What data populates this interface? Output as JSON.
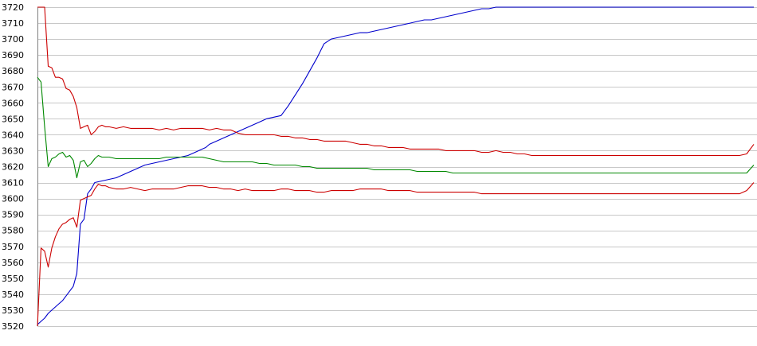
{
  "chart_data": {
    "type": "line",
    "ylim": [
      3520,
      3720
    ],
    "yticks": [
      3520,
      3530,
      3540,
      3550,
      3560,
      3570,
      3580,
      3590,
      3600,
      3610,
      3620,
      3630,
      3640,
      3650,
      3660,
      3670,
      3680,
      3690,
      3700,
      3710,
      3720
    ],
    "grid": true,
    "legend": "none",
    "series": [
      {
        "color": "#0000cc",
        "x": [
          0,
          1,
          2,
          3,
          4,
          5,
          6,
          7,
          8,
          9,
          10,
          11,
          12,
          13,
          14,
          15,
          16,
          18,
          20,
          22,
          24,
          26,
          28,
          30,
          32,
          34,
          36,
          38,
          40,
          42,
          44,
          46,
          47,
          48,
          50,
          52,
          54,
          56,
          58,
          60,
          62,
          64,
          66,
          68,
          70,
          72,
          74,
          76,
          78,
          80,
          82,
          84,
          86,
          88,
          90,
          92,
          94,
          96,
          98,
          100,
          102,
          104,
          106,
          108,
          110,
          112,
          114,
          116,
          118,
          120,
          122,
          124,
          126,
          128,
          130,
          132,
          134,
          136,
          138,
          140,
          142,
          144,
          146,
          148,
          150,
          152,
          154,
          156,
          158,
          160,
          162,
          164,
          166,
          168,
          170,
          172,
          174,
          176,
          178,
          180,
          182,
          184,
          186,
          188,
          190,
          192,
          194,
          196,
          198,
          200
        ],
        "y": [
          3521,
          3523,
          3525,
          3528,
          3530,
          3532,
          3534,
          3536,
          3539,
          3542,
          3545,
          3553,
          3584,
          3587,
          3603,
          3606,
          3610,
          3611,
          3612,
          3613,
          3615,
          3617,
          3619,
          3621,
          3622,
          3623,
          3624,
          3625,
          3626,
          3627,
          3629,
          3631,
          3632,
          3634,
          3636,
          3638,
          3640,
          3642,
          3644,
          3646,
          3648,
          3650,
          3651,
          3652,
          3658,
          3665,
          3672,
          3680,
          3688,
          3697,
          3700,
          3701,
          3702,
          3703,
          3704,
          3704,
          3705,
          3706,
          3707,
          3708,
          3709,
          3710,
          3711,
          3712,
          3712,
          3713,
          3714,
          3715,
          3716,
          3717,
          3718,
          3719,
          3719,
          3720,
          3720,
          3720,
          3720,
          3720,
          3720,
          3720,
          3720,
          3720,
          3720,
          3720,
          3720,
          3720,
          3720,
          3720,
          3720,
          3720,
          3720,
          3720,
          3720,
          3720,
          3720,
          3720,
          3720,
          3720,
          3720,
          3720,
          3720,
          3720,
          3720,
          3720,
          3720,
          3720,
          3720,
          3720,
          3720,
          3720
        ]
      },
      {
        "color": "#cc0000",
        "x": [
          0,
          1,
          2,
          3,
          4,
          5,
          6,
          7,
          8,
          9,
          10,
          11,
          12,
          13,
          14,
          15,
          16,
          17,
          18,
          19,
          20,
          22,
          24,
          26,
          28,
          30,
          32,
          34,
          36,
          38,
          40,
          42,
          44,
          46,
          48,
          50,
          52,
          54,
          56,
          58,
          60,
          62,
          64,
          66,
          68,
          70,
          72,
          74,
          76,
          78,
          80,
          82,
          84,
          86,
          88,
          90,
          92,
          94,
          96,
          98,
          100,
          102,
          104,
          106,
          108,
          110,
          112,
          114,
          116,
          118,
          120,
          122,
          124,
          126,
          128,
          130,
          132,
          134,
          136,
          138,
          140,
          142,
          144,
          146,
          148,
          150,
          152,
          154,
          156,
          158,
          160,
          162,
          164,
          166,
          168,
          170,
          172,
          174,
          176,
          178,
          180,
          182,
          184,
          186,
          188,
          190,
          192,
          194,
          196,
          198,
          200
        ],
        "y": [
          3720,
          3720,
          3720,
          3683,
          3682,
          3676,
          3676,
          3675,
          3669,
          3668,
          3664,
          3657,
          3644,
          3645,
          3646,
          3640,
          3642,
          3645,
          3646,
          3645,
          3645,
          3644,
          3645,
          3644,
          3644,
          3644,
          3644,
          3643,
          3644,
          3643,
          3644,
          3644,
          3644,
          3644,
          3643,
          3644,
          3643,
          3643,
          3641,
          3640,
          3640,
          3640,
          3640,
          3640,
          3639,
          3639,
          3638,
          3638,
          3637,
          3637,
          3636,
          3636,
          3636,
          3636,
          3635,
          3634,
          3634,
          3633,
          3633,
          3632,
          3632,
          3632,
          3631,
          3631,
          3631,
          3631,
          3631,
          3630,
          3630,
          3630,
          3630,
          3630,
          3629,
          3629,
          3630,
          3629,
          3629,
          3628,
          3628,
          3627,
          3627,
          3627,
          3627,
          3627,
          3627,
          3627,
          3627,
          3627,
          3627,
          3627,
          3627,
          3627,
          3627,
          3627,
          3627,
          3627,
          3627,
          3627,
          3627,
          3627,
          3627,
          3627,
          3627,
          3627,
          3627,
          3627,
          3627,
          3627,
          3627,
          3628,
          3634
        ]
      },
      {
        "color": "#008800",
        "x": [
          0,
          1,
          2,
          3,
          4,
          5,
          6,
          7,
          8,
          9,
          10,
          11,
          12,
          13,
          14,
          15,
          16,
          17,
          18,
          19,
          20,
          22,
          24,
          26,
          28,
          30,
          32,
          34,
          36,
          38,
          40,
          42,
          44,
          46,
          48,
          50,
          52,
          54,
          56,
          58,
          60,
          62,
          64,
          66,
          68,
          70,
          72,
          74,
          76,
          78,
          80,
          82,
          84,
          86,
          88,
          90,
          92,
          94,
          96,
          98,
          100,
          102,
          104,
          106,
          108,
          110,
          112,
          114,
          116,
          118,
          120,
          122,
          124,
          126,
          128,
          130,
          132,
          134,
          136,
          138,
          140,
          142,
          144,
          146,
          148,
          150,
          152,
          154,
          156,
          158,
          160,
          162,
          164,
          166,
          168,
          170,
          172,
          174,
          176,
          178,
          180,
          182,
          184,
          186,
          188,
          190,
          192,
          194,
          196,
          198,
          200
        ],
        "y": [
          3676,
          3673,
          3645,
          3620,
          3625,
          3626,
          3628,
          3629,
          3626,
          3627,
          3624,
          3613,
          3623,
          3624,
          3620,
          3622,
          3625,
          3627,
          3626,
          3626,
          3626,
          3625,
          3625,
          3625,
          3625,
          3625,
          3625,
          3625,
          3626,
          3626,
          3626,
          3626,
          3626,
          3626,
          3625,
          3624,
          3623,
          3623,
          3623,
          3623,
          3623,
          3622,
          3622,
          3621,
          3621,
          3621,
          3621,
          3620,
          3620,
          3619,
          3619,
          3619,
          3619,
          3619,
          3619,
          3619,
          3619,
          3618,
          3618,
          3618,
          3618,
          3618,
          3618,
          3617,
          3617,
          3617,
          3617,
          3617,
          3616,
          3616,
          3616,
          3616,
          3616,
          3616,
          3616,
          3616,
          3616,
          3616,
          3616,
          3616,
          3616,
          3616,
          3616,
          3616,
          3616,
          3616,
          3616,
          3616,
          3616,
          3616,
          3616,
          3616,
          3616,
          3616,
          3616,
          3616,
          3616,
          3616,
          3616,
          3616,
          3616,
          3616,
          3616,
          3616,
          3616,
          3616,
          3616,
          3616,
          3616,
          3616,
          3621
        ]
      },
      {
        "color": "#cc0000",
        "x": [
          0,
          1,
          2,
          3,
          4,
          5,
          6,
          7,
          8,
          9,
          10,
          11,
          12,
          13,
          14,
          15,
          16,
          17,
          18,
          19,
          20,
          22,
          24,
          26,
          28,
          30,
          32,
          34,
          36,
          38,
          40,
          42,
          44,
          46,
          48,
          50,
          52,
          54,
          56,
          58,
          60,
          62,
          64,
          66,
          68,
          70,
          72,
          74,
          76,
          78,
          80,
          82,
          84,
          86,
          88,
          90,
          92,
          94,
          96,
          98,
          100,
          102,
          104,
          106,
          108,
          110,
          112,
          114,
          116,
          118,
          120,
          122,
          124,
          126,
          128,
          130,
          132,
          134,
          136,
          138,
          140,
          142,
          144,
          146,
          148,
          150,
          152,
          154,
          156,
          158,
          160,
          162,
          164,
          166,
          168,
          170,
          172,
          174,
          176,
          178,
          180,
          182,
          184,
          186,
          188,
          190,
          192,
          194,
          196,
          198,
          200
        ],
        "y": [
          3520,
          3569,
          3567,
          3557,
          3569,
          3576,
          3581,
          3584,
          3585,
          3587,
          3588,
          3582,
          3599,
          3600,
          3601,
          3602,
          3606,
          3609,
          3608,
          3608,
          3607,
          3606,
          3606,
          3607,
          3606,
          3605,
          3606,
          3606,
          3606,
          3606,
          3607,
          3608,
          3608,
          3608,
          3607,
          3607,
          3606,
          3606,
          3605,
          3606,
          3605,
          3605,
          3605,
          3605,
          3606,
          3606,
          3605,
          3605,
          3605,
          3604,
          3604,
          3605,
          3605,
          3605,
          3605,
          3606,
          3606,
          3606,
          3606,
          3605,
          3605,
          3605,
          3605,
          3604,
          3604,
          3604,
          3604,
          3604,
          3604,
          3604,
          3604,
          3604,
          3603,
          3603,
          3603,
          3603,
          3603,
          3603,
          3603,
          3603,
          3603,
          3603,
          3603,
          3603,
          3603,
          3603,
          3603,
          3603,
          3603,
          3603,
          3603,
          3603,
          3603,
          3603,
          3603,
          3603,
          3603,
          3603,
          3603,
          3603,
          3603,
          3603,
          3603,
          3603,
          3603,
          3603,
          3603,
          3603,
          3603,
          3605,
          3610
        ]
      }
    ]
  }
}
